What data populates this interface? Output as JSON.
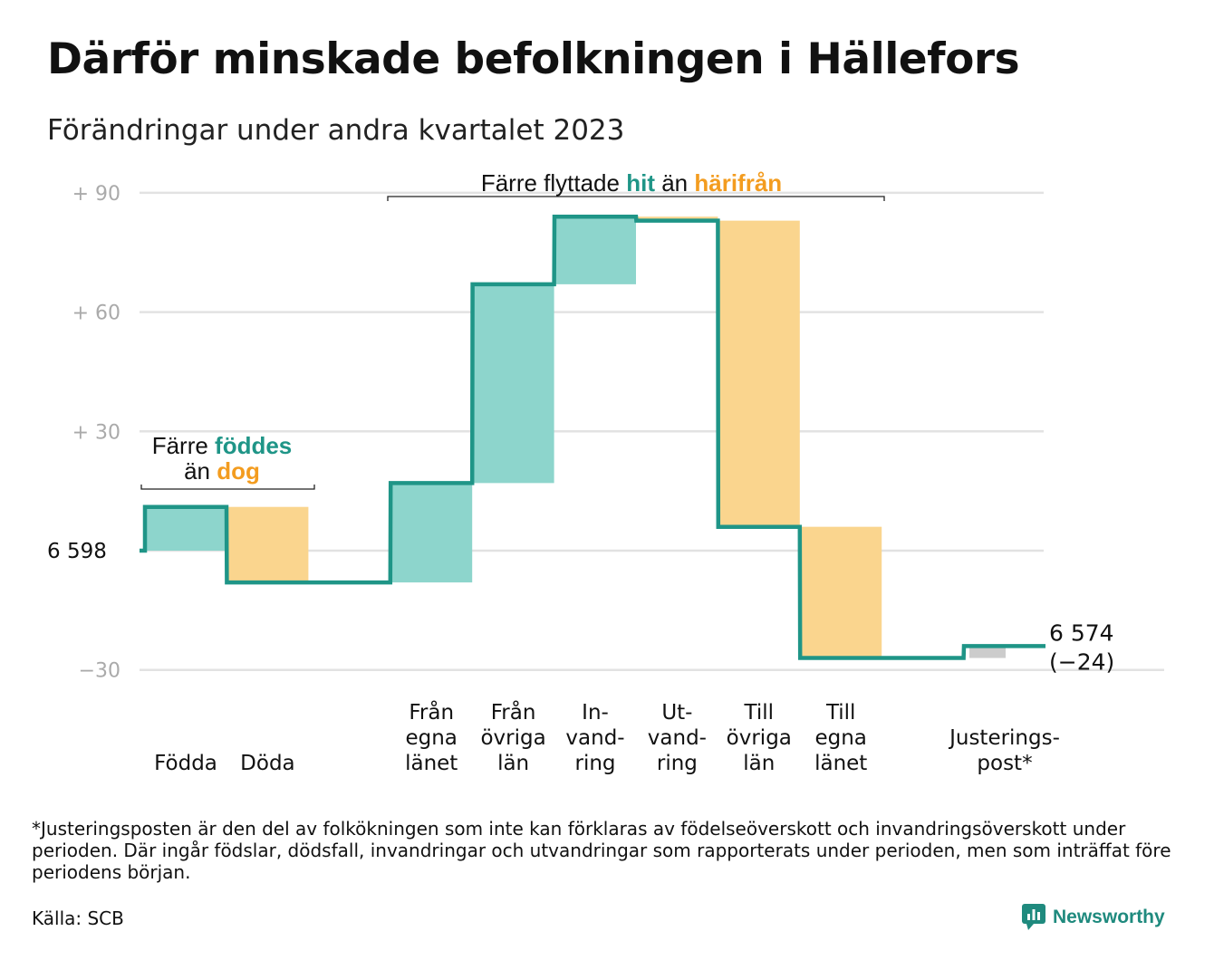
{
  "title": "Därför minskade befolkningen i Hällefors",
  "subtitle": "Förändringar under andra kvartalet 2023",
  "footnote": "*Justeringsposten är den del av folkökningen som inte kan förklaras av födelseöverskott och invandringsöverskott under perioden. Där ingår födslar, dödsfall, invandringar och utvandringar som rapporterats under perioden, men som inträffat före periodens början.",
  "source": "Källa: SCB",
  "brand": {
    "name": "Newsworthy",
    "icon": "newsworthy-logo-icon"
  },
  "colors": {
    "teal": "#1f9587",
    "teal_fill": "#8dd5cc",
    "orange_fill": "#fad58e",
    "orange_text": "#f39c1f",
    "gray_fill": "#cccccc",
    "grid": "#e2e2e2",
    "tick": "#aaaaaa"
  },
  "chart_data": {
    "type": "waterfall",
    "start_value": 6598,
    "start_label": "6  598",
    "end_value": 6574,
    "end_label": "6 574",
    "end_change_label": "(−24)",
    "y_ticks": [
      {
        "value": 90,
        "label": "+  90"
      },
      {
        "value": 60,
        "label": "+  60"
      },
      {
        "value": 30,
        "label": "+  30"
      },
      {
        "value": 0,
        "label": ""
      },
      {
        "value": -30,
        "label": "−30"
      }
    ],
    "ylim": [
      -30,
      90
    ],
    "steps": [
      {
        "label": [
          "Födda"
        ],
        "change": 11,
        "kind": "increase"
      },
      {
        "label": [
          "Döda"
        ],
        "change": -19,
        "kind": "decrease"
      },
      {
        "label": [],
        "change": 0,
        "kind": "gap"
      },
      {
        "label": [
          "Från",
          "egna",
          "länet"
        ],
        "change": 25,
        "kind": "increase"
      },
      {
        "label": [
          "Från",
          "övriga",
          "län"
        ],
        "change": 50,
        "kind": "increase"
      },
      {
        "label": [
          "In-",
          "vand-",
          "ring"
        ],
        "change": 17,
        "kind": "increase"
      },
      {
        "label": [
          "Ut-",
          "vand-",
          "ring"
        ],
        "change": -1,
        "kind": "decrease"
      },
      {
        "label": [
          "Till",
          "övriga",
          "län"
        ],
        "change": -77,
        "kind": "decrease"
      },
      {
        "label": [
          "Till",
          "egna",
          "länet"
        ],
        "change": -33,
        "kind": "decrease"
      },
      {
        "label": [],
        "change": 0,
        "kind": "gap"
      },
      {
        "label": [
          "Justerings-",
          "post*"
        ],
        "change": 3,
        "kind": "adjustment"
      }
    ],
    "annotations": [
      {
        "parts": [
          {
            "text": "Färre ",
            "color": "dark"
          },
          {
            "text": "föddes",
            "color": "teal"
          }
        ],
        "parts2": [
          {
            "text": "än ",
            "color": "dark"
          },
          {
            "text": "dog",
            "color": "orange"
          }
        ]
      },
      {
        "parts": [
          {
            "text": "Färre flyttade ",
            "color": "dark"
          },
          {
            "text": "hit",
            "color": "teal"
          },
          {
            "text": " än ",
            "color": "dark"
          },
          {
            "text": "härifrån",
            "color": "orange"
          }
        ]
      }
    ]
  }
}
